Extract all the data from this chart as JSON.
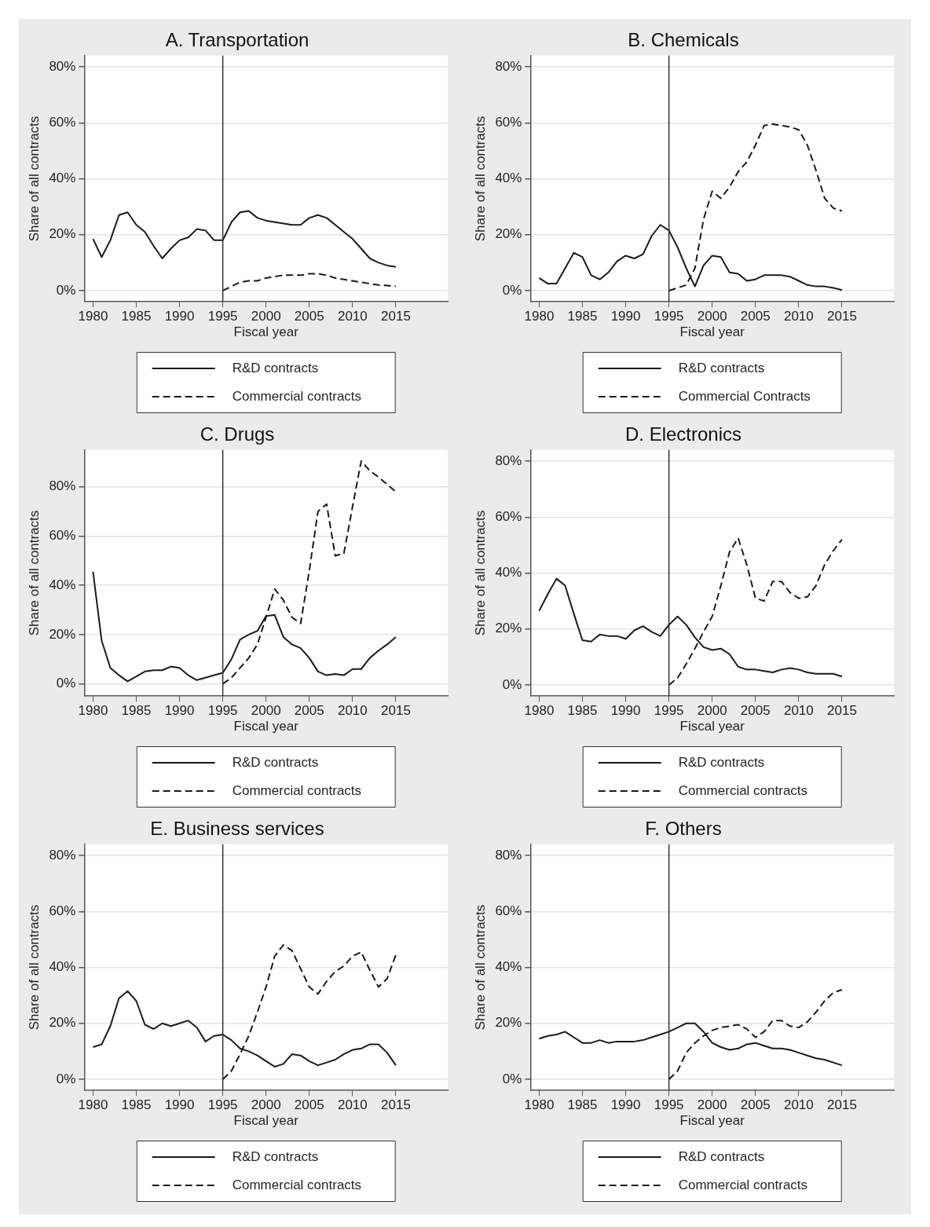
{
  "chart_data": [
    {
      "type": "line",
      "title": "A. Transportation",
      "xlabel": "Fiscal year",
      "ylabel": "Share of all contracts",
      "xlim": [
        1979,
        2021
      ],
      "xticks": [
        1980,
        1985,
        1990,
        1995,
        2000,
        2005,
        2010,
        2015
      ],
      "ylim": [
        -4,
        84
      ],
      "yticks": [
        {
          "value": 0,
          "label": "0%"
        },
        {
          "value": 20,
          "label": "20%"
        },
        {
          "value": 40,
          "label": "40%"
        },
        {
          "value": 60,
          "label": "60%"
        },
        {
          "value": 80,
          "label": "80%"
        }
      ],
      "grid": "y",
      "legend": "bottom",
      "ref_lines": [
        {
          "axis": "x",
          "value": 1995,
          "color": "#333333"
        }
      ],
      "series": [
        {
          "name": "R&D contracts",
          "color": "#1a1a1a",
          "line_style": "solid",
          "x": [
            1980,
            1981,
            1982,
            1983,
            1984,
            1985,
            1986,
            1987,
            1988,
            1989,
            1990,
            1991,
            1992,
            1993,
            1994,
            1995,
            1996,
            1997,
            1998,
            1999,
            2000,
            2001,
            2002,
            2003,
            2004,
            2005,
            2006,
            2007,
            2008,
            2009,
            2010,
            2011,
            2012,
            2013,
            2014,
            2015
          ],
          "values": [
            18.5,
            12,
            18,
            27,
            28,
            23.5,
            21,
            16,
            11.5,
            15,
            18,
            19,
            22,
            21.5,
            18,
            18,
            24.5,
            28,
            28.5,
            26,
            25,
            24.5,
            24,
            23.5,
            23.5,
            26,
            27,
            26,
            23.5,
            21,
            18.5,
            15,
            11.5,
            10,
            9,
            8.5
          ]
        },
        {
          "name": "Commercial contracts",
          "color": "#1a1a1a",
          "line_style": "dashed",
          "x": [
            1995,
            1996,
            1997,
            1998,
            1999,
            2000,
            2001,
            2002,
            2003,
            2004,
            2005,
            2006,
            2007,
            2008,
            2009,
            2010,
            2011,
            2012,
            2013,
            2014,
            2015
          ],
          "values": [
            0,
            1.5,
            3,
            3.5,
            3.5,
            4.5,
            5,
            5.5,
            5.5,
            5.5,
            6,
            6,
            5.5,
            4.5,
            4,
            3.5,
            3,
            2.5,
            2,
            1.8,
            1.5
          ]
        }
      ]
    },
    {
      "type": "line",
      "title": "B. Chemicals",
      "xlabel": "Fiscal year",
      "ylabel": "Share of all contracts",
      "xlim": [
        1979,
        2021
      ],
      "xticks": [
        1980,
        1985,
        1990,
        1995,
        2000,
        2005,
        2010,
        2015
      ],
      "ylim": [
        -4,
        84
      ],
      "yticks": [
        {
          "value": 0,
          "label": "0%"
        },
        {
          "value": 20,
          "label": "20%"
        },
        {
          "value": 40,
          "label": "40%"
        },
        {
          "value": 60,
          "label": "60%"
        },
        {
          "value": 80,
          "label": "80%"
        }
      ],
      "grid": "y",
      "legend": "bottom",
      "ref_lines": [
        {
          "axis": "x",
          "value": 1995,
          "color": "#333333"
        }
      ],
      "series": [
        {
          "name": "R&D contracts",
          "color": "#1a1a1a",
          "line_style": "solid",
          "x": [
            1980,
            1981,
            1982,
            1983,
            1984,
            1985,
            1986,
            1987,
            1988,
            1989,
            1990,
            1991,
            1992,
            1993,
            1994,
            1995,
            1996,
            1997,
            1998,
            1999,
            2000,
            2001,
            2002,
            2003,
            2004,
            2005,
            2006,
            2007,
            2008,
            2009,
            2010,
            2011,
            2012,
            2013,
            2014,
            2015
          ],
          "values": [
            4.5,
            2.5,
            2.5,
            8,
            13.5,
            12,
            5.5,
            4,
            6.5,
            10.5,
            12.5,
            11.5,
            13,
            19.5,
            23.5,
            21.5,
            15.5,
            8,
            1.5,
            9,
            12.5,
            12,
            6.5,
            6,
            3.5,
            4,
            5.5,
            5.5,
            5.5,
            5,
            3.5,
            2,
            1.5,
            1.5,
            1,
            0.2
          ]
        },
        {
          "name": "Commercial Contracts",
          "color": "#1a1a1a",
          "line_style": "dashed",
          "x": [
            1995,
            1996,
            1997,
            1998,
            1999,
            2000,
            2001,
            2002,
            2003,
            2004,
            2005,
            2006,
            2007,
            2008,
            2009,
            2010,
            2011,
            2012,
            2013,
            2014,
            2015
          ],
          "values": [
            0,
            1,
            2,
            8,
            25.5,
            35.5,
            33,
            37,
            42.5,
            46,
            52,
            59,
            59.5,
            59,
            58.5,
            57.5,
            52,
            43,
            33,
            29.5,
            28.5
          ]
        }
      ]
    },
    {
      "type": "line",
      "title": "C. Drugs",
      "xlabel": "Fiscal year",
      "ylabel": "Share of all contracts",
      "xlim": [
        1979,
        2021
      ],
      "xticks": [
        1980,
        1985,
        1990,
        1995,
        2000,
        2005,
        2010,
        2015
      ],
      "ylim": [
        -5,
        95
      ],
      "yticks": [
        {
          "value": 0,
          "label": "0%"
        },
        {
          "value": 20,
          "label": "20%"
        },
        {
          "value": 40,
          "label": "40%"
        },
        {
          "value": 60,
          "label": "60%"
        },
        {
          "value": 80,
          "label": "80%"
        }
      ],
      "grid": "y",
      "legend": "bottom",
      "ref_lines": [
        {
          "axis": "x",
          "value": 1995,
          "color": "#333333"
        }
      ],
      "series": [
        {
          "name": "R&D contracts",
          "color": "#1a1a1a",
          "line_style": "solid",
          "x": [
            1980,
            1981,
            1982,
            1983,
            1984,
            1985,
            1986,
            1987,
            1988,
            1989,
            1990,
            1991,
            1992,
            1993,
            1994,
            1995,
            1996,
            1997,
            1998,
            1999,
            2000,
            2001,
            2002,
            2003,
            2004,
            2005,
            2006,
            2007,
            2008,
            2009,
            2010,
            2011,
            2012,
            2013,
            2014,
            2015
          ],
          "values": [
            45.5,
            17.5,
            6.5,
            3.5,
            1,
            3,
            5,
            5.5,
            5.5,
            7,
            6.5,
            3.5,
            1.5,
            2.5,
            3.5,
            4.5,
            10,
            18,
            20,
            21.5,
            27.5,
            28,
            19,
            16,
            14.5,
            10.5,
            5,
            3.5,
            4,
            3.5,
            6,
            6,
            10.5,
            13.5,
            16,
            19
          ]
        },
        {
          "name": "Commercial contracts",
          "color": "#1a1a1a",
          "line_style": "dashed",
          "x": [
            1995,
            1996,
            1997,
            1998,
            1999,
            2000,
            2001,
            2002,
            2003,
            2004,
            2005,
            2006,
            2007,
            2008,
            2009,
            2010,
            2011,
            2012,
            2013,
            2014,
            2015
          ],
          "values": [
            0,
            2.5,
            6.5,
            10.5,
            16,
            27,
            38.5,
            34,
            27,
            24.5,
            46,
            70,
            73,
            52,
            53,
            72,
            90.5,
            86.5,
            84,
            81,
            78
          ]
        }
      ]
    },
    {
      "type": "line",
      "title": "D. Electronics",
      "xlabel": "Fiscal year",
      "ylabel": "Share of all contracts",
      "xlim": [
        1979,
        2021
      ],
      "xticks": [
        1980,
        1985,
        1990,
        1995,
        2000,
        2005,
        2010,
        2015
      ],
      "ylim": [
        -4,
        84
      ],
      "yticks": [
        {
          "value": 0,
          "label": "0%"
        },
        {
          "value": 20,
          "label": "20%"
        },
        {
          "value": 40,
          "label": "40%"
        },
        {
          "value": 60,
          "label": "60%"
        },
        {
          "value": 80,
          "label": "80%"
        }
      ],
      "grid": "y",
      "legend": "bottom",
      "ref_lines": [
        {
          "axis": "x",
          "value": 1995,
          "color": "#333333"
        }
      ],
      "series": [
        {
          "name": "R&D contracts",
          "color": "#1a1a1a",
          "line_style": "solid",
          "x": [
            1980,
            1981,
            1982,
            1983,
            1984,
            1985,
            1986,
            1987,
            1988,
            1989,
            1990,
            1991,
            1992,
            1993,
            1994,
            1995,
            1996,
            1997,
            1998,
            1999,
            2000,
            2001,
            2002,
            2003,
            2004,
            2005,
            2006,
            2007,
            2008,
            2009,
            2010,
            2011,
            2012,
            2013,
            2014,
            2015
          ],
          "values": [
            26.5,
            32.5,
            38,
            35.5,
            25.5,
            16,
            15.5,
            18,
            17.5,
            17.5,
            16.5,
            19.5,
            21,
            19,
            17.5,
            21.5,
            24.5,
            21.5,
            17,
            13.5,
            12.5,
            13,
            11,
            6.5,
            5.5,
            5.5,
            5,
            4.5,
            5.5,
            6,
            5.5,
            4.5,
            4,
            4,
            4,
            3
          ]
        },
        {
          "name": "Commercial contracts",
          "color": "#1a1a1a",
          "line_style": "dashed",
          "x": [
            1995,
            1996,
            1997,
            1998,
            1999,
            2000,
            2001,
            2002,
            2003,
            2004,
            2005,
            2006,
            2007,
            2008,
            2009,
            2010,
            2011,
            2012,
            2013,
            2014,
            2015
          ],
          "values": [
            0,
            2.5,
            7.5,
            13,
            19,
            24.5,
            35.5,
            47.5,
            52.5,
            43,
            31,
            30,
            37,
            37,
            33,
            31,
            31.5,
            35.5,
            43,
            48,
            52
          ]
        }
      ]
    },
    {
      "type": "line",
      "title": "E. Business services",
      "xlabel": "Fiscal year",
      "ylabel": "Share of all contracts",
      "xlim": [
        1979,
        2021
      ],
      "xticks": [
        1980,
        1985,
        1990,
        1995,
        2000,
        2005,
        2010,
        2015
      ],
      "ylim": [
        -4,
        84
      ],
      "yticks": [
        {
          "value": 0,
          "label": "0%"
        },
        {
          "value": 20,
          "label": "20%"
        },
        {
          "value": 40,
          "label": "40%"
        },
        {
          "value": 60,
          "label": "60%"
        },
        {
          "value": 80,
          "label": "80%"
        }
      ],
      "grid": "y",
      "legend": "bottom",
      "ref_lines": [
        {
          "axis": "x",
          "value": 1995,
          "color": "#333333"
        }
      ],
      "series": [
        {
          "name": "R&D contracts",
          "color": "#1a1a1a",
          "line_style": "solid",
          "x": [
            1980,
            1981,
            1982,
            1983,
            1984,
            1985,
            1986,
            1987,
            1988,
            1989,
            1990,
            1991,
            1992,
            1993,
            1994,
            1995,
            1996,
            1997,
            1998,
            1999,
            2000,
            2001,
            2002,
            2003,
            2004,
            2005,
            2006,
            2007,
            2008,
            2009,
            2010,
            2011,
            2012,
            2013,
            2014,
            2015
          ],
          "values": [
            11.5,
            12.5,
            19,
            29,
            31.5,
            28,
            19.5,
            18,
            20,
            19,
            20,
            21,
            18.5,
            13.5,
            15.5,
            16,
            14,
            11,
            10,
            8.5,
            6.5,
            4.5,
            5.5,
            9,
            8.5,
            6.5,
            5,
            6,
            7,
            9,
            10.5,
            11,
            12.5,
            12.5,
            9.5,
            5
          ]
        },
        {
          "name": "Commercial contracts",
          "color": "#1a1a1a",
          "line_style": "dashed",
          "x": [
            1995,
            1996,
            1997,
            1998,
            1999,
            2000,
            2001,
            2002,
            2003,
            2004,
            2005,
            2006,
            2007,
            2008,
            2009,
            2010,
            2011,
            2012,
            2013,
            2014,
            2015
          ],
          "values": [
            0,
            3,
            9,
            15.5,
            24,
            33,
            44,
            48,
            46,
            39.5,
            33,
            30.5,
            35,
            38.5,
            40.5,
            44,
            45.5,
            39,
            33,
            36,
            44.5
          ]
        }
      ]
    },
    {
      "type": "line",
      "title": "F. Others",
      "xlabel": "Fiscal year",
      "ylabel": "Share of all contracts",
      "xlim": [
        1979,
        2021
      ],
      "xticks": [
        1980,
        1985,
        1990,
        1995,
        2000,
        2005,
        2010,
        2015
      ],
      "ylim": [
        -4,
        84
      ],
      "yticks": [
        {
          "value": 0,
          "label": "0%"
        },
        {
          "value": 20,
          "label": "20%"
        },
        {
          "value": 40,
          "label": "40%"
        },
        {
          "value": 60,
          "label": "60%"
        },
        {
          "value": 80,
          "label": "80%"
        }
      ],
      "grid": "y",
      "legend": "bottom",
      "ref_lines": [
        {
          "axis": "x",
          "value": 1995,
          "color": "#333333"
        }
      ],
      "series": [
        {
          "name": "R&D contracts",
          "color": "#1a1a1a",
          "line_style": "solid",
          "x": [
            1980,
            1981,
            1982,
            1983,
            1984,
            1985,
            1986,
            1987,
            1988,
            1989,
            1990,
            1991,
            1992,
            1993,
            1994,
            1995,
            1996,
            1997,
            1998,
            1999,
            2000,
            2001,
            2002,
            2003,
            2004,
            2005,
            2006,
            2007,
            2008,
            2009,
            2010,
            2011,
            2012,
            2013,
            2014,
            2015
          ],
          "values": [
            14.5,
            15.5,
            16,
            17,
            15,
            13,
            13,
            14,
            13,
            13.5,
            13.5,
            13.5,
            14,
            15,
            16,
            17,
            18.5,
            20,
            20,
            17,
            13,
            11.5,
            10.5,
            11,
            12.5,
            13,
            12,
            11,
            11,
            10.5,
            9.5,
            8.5,
            7.5,
            7,
            6,
            5
          ]
        },
        {
          "name": "Commercial contracts",
          "color": "#1a1a1a",
          "line_style": "dashed",
          "x": [
            1995,
            1996,
            1997,
            1998,
            1999,
            2000,
            2001,
            2002,
            2003,
            2004,
            2005,
            2006,
            2007,
            2008,
            2009,
            2010,
            2011,
            2012,
            2013,
            2014,
            2015
          ],
          "values": [
            0,
            3,
            9.5,
            13,
            15.5,
            17.5,
            18.5,
            19,
            19.5,
            18,
            15,
            17,
            21,
            21,
            19,
            18.5,
            20.5,
            24,
            28,
            31,
            32
          ]
        }
      ]
    }
  ]
}
